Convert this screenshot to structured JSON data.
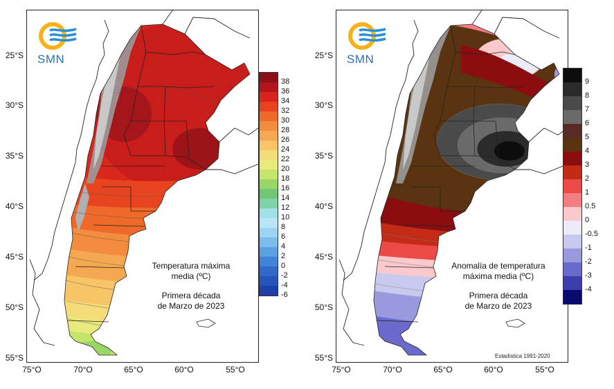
{
  "agency": "SMN",
  "latitude_labels": [
    "25°S",
    "30°S",
    "35°S",
    "40°S",
    "45°S",
    "50°S",
    "55°S"
  ],
  "longitude_labels": [
    "75°O",
    "70°O",
    "65°O",
    "60°O",
    "55°O"
  ],
  "maps": [
    {
      "title_line1": "Temperatura máxima",
      "title_line2": "media (ºC)",
      "period_line1": "Primera década",
      "period_line2": "de Marzo de 2023",
      "legend_unit": "ºC",
      "legend_labels": [
        "38",
        "36",
        "34",
        "32",
        "30",
        "28",
        "26",
        "24",
        "22",
        "20",
        "18",
        "16",
        "14",
        "12",
        "10",
        "8",
        "6",
        "4",
        "2",
        "0",
        "-2",
        "-4",
        "-6"
      ],
      "legend_colors": [
        "#8b0f18",
        "#b4151d",
        "#d9241c",
        "#e8421e",
        "#ef6a2a",
        "#f38c3c",
        "#f5a850",
        "#f7c565",
        "#f4dc7a",
        "#e8ea7e",
        "#c4e46b",
        "#99d665",
        "#72c872",
        "#7dd2a8",
        "#9fe0e6",
        "#b8e6f7",
        "#9ed4f3",
        "#7cbcec",
        "#5aa0e3",
        "#3f84d8",
        "#2f6acb",
        "#2554bb",
        "#1d3fa8"
      ]
    },
    {
      "title_line1": "Anomalía de temperatura",
      "title_line2": "máxima media (ºC)",
      "period_line1": "Primera década",
      "period_line2": "de Marzo de 2023",
      "credit": "Estadística 1991-2020",
      "legend_unit": "ºC",
      "legend_labels": [
        "9",
        "8",
        "7",
        "6",
        "5",
        "4",
        "3",
        "2",
        "1",
        "0.5",
        "0",
        "-0.5",
        "-1",
        "-2",
        "-3",
        "-4"
      ],
      "legend_colors": [
        "#0d0d0d",
        "#2b2b2b",
        "#4a4a4a",
        "#6a6a6a",
        "#5a2a24",
        "#5a3410",
        "#8b0d10",
        "#c42b16",
        "#ec4a46",
        "#f47d82",
        "#fbc8cc",
        "#ececf8",
        "#c9c9ef",
        "#9999de",
        "#6a6acc",
        "#3d3dad",
        "#0a0a6e"
      ]
    }
  ]
}
